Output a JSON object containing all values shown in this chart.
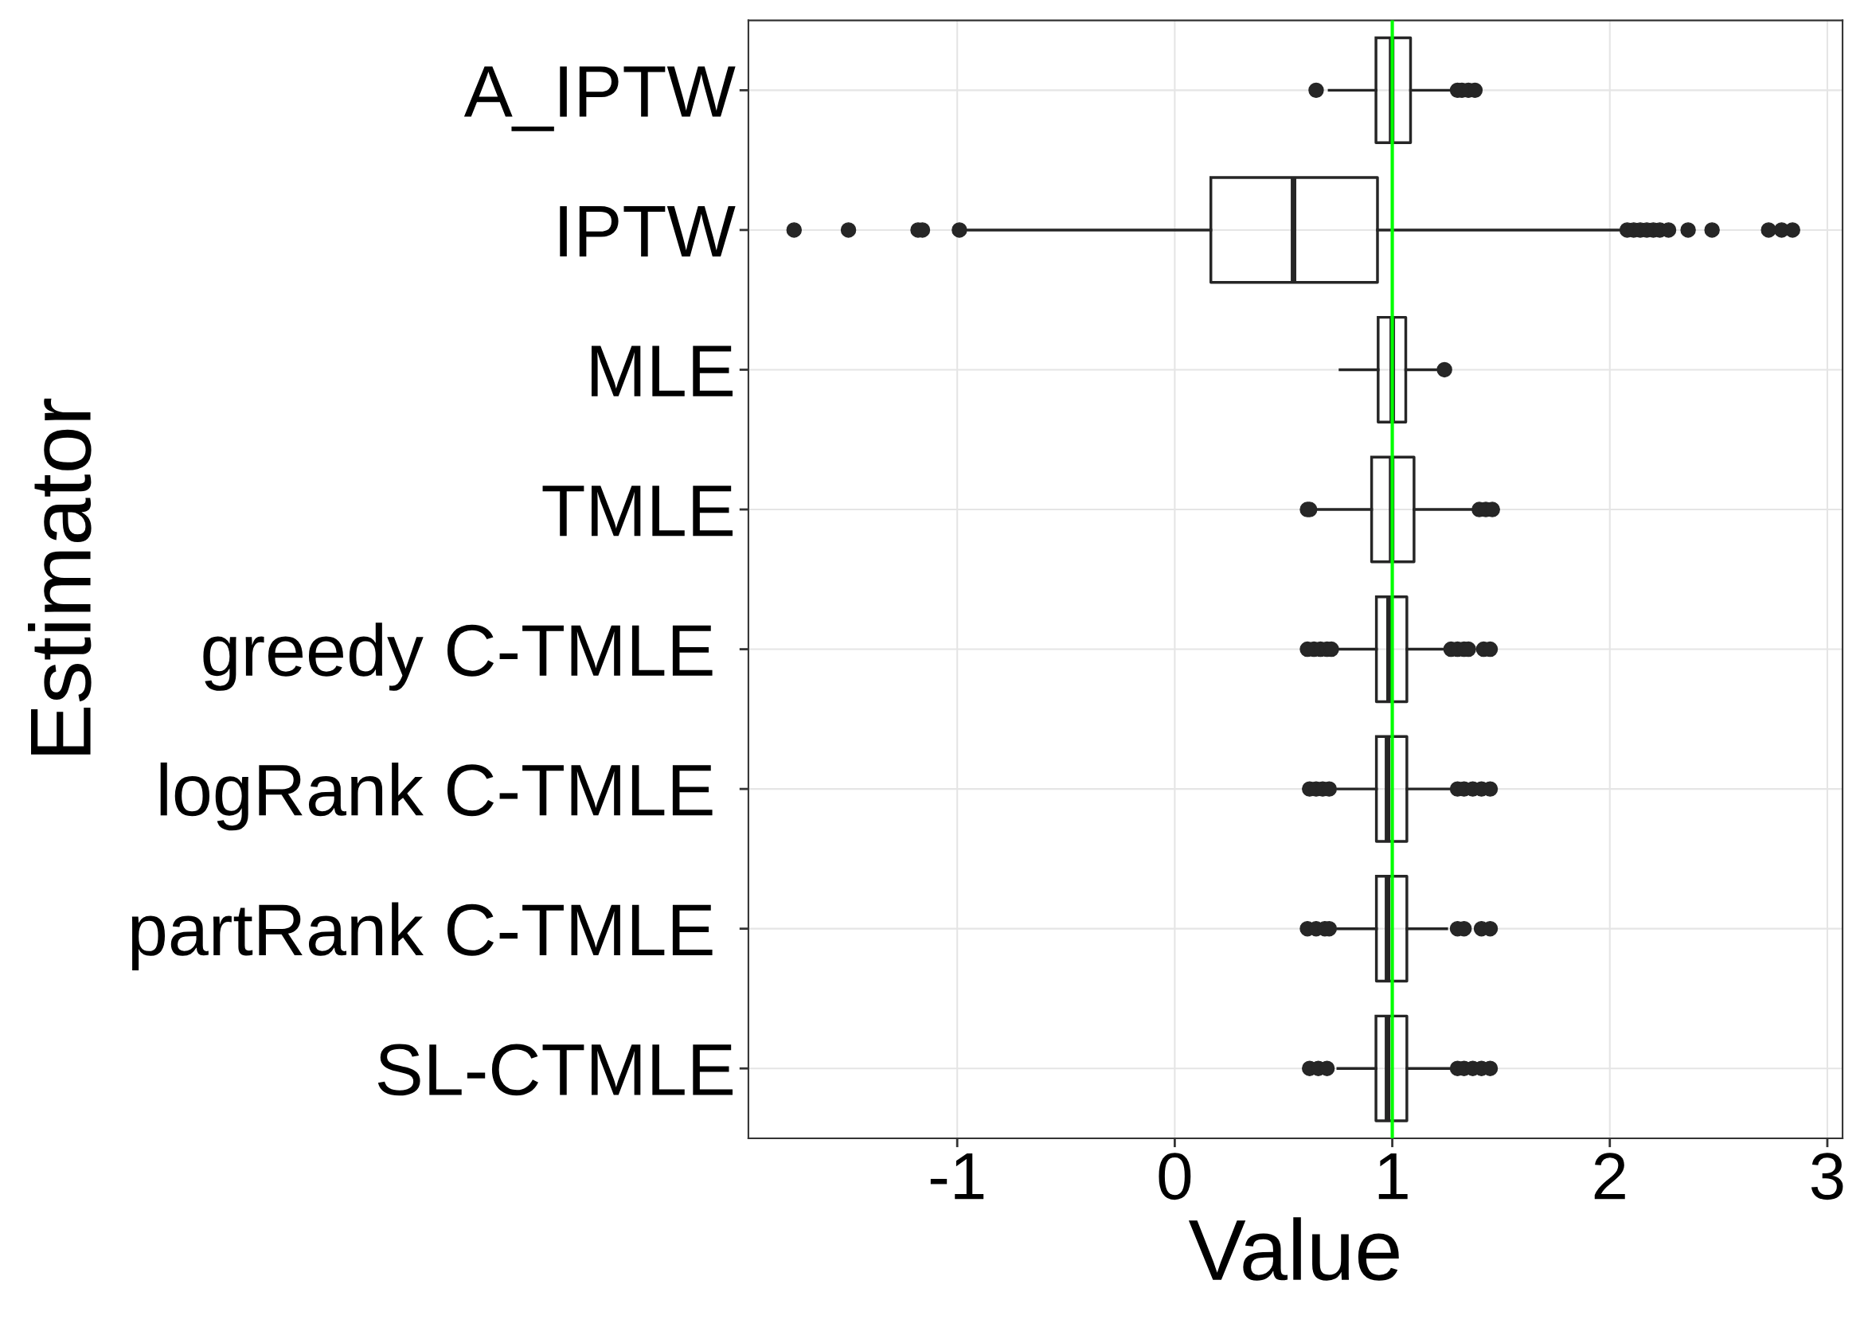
{
  "chart_data": {
    "type": "box",
    "orientation": "horizontal",
    "xlabel": "Value",
    "ylabel": "Estimator",
    "categories": [
      "A_IPTW",
      "IPTW",
      "MLE",
      "TMLE",
      "greedy C-TMLE ",
      "logRank C-TMLE ",
      "partRank C-TMLE ",
      "SL-CTMLE"
    ],
    "boxes": [
      {
        "low": 0.71,
        "q1": 0.925,
        "median": 0.997,
        "q3": 1.084,
        "high": 1.28,
        "outliers": [
          0.65,
          1.3,
          1.32,
          1.35,
          1.38
        ]
      },
      {
        "low": -0.97,
        "q1": 0.166,
        "median": 0.546,
        "q3": 0.932,
        "high": 2.06,
        "outliers": [
          -1.75,
          -1.5,
          -1.18,
          -1.16,
          -0.99,
          2.08,
          2.11,
          2.14,
          2.17,
          2.2,
          2.23,
          2.27,
          2.36,
          2.47,
          2.73,
          2.79,
          2.84
        ]
      },
      {
        "low": 0.76,
        "q1": 0.935,
        "median": 1.0,
        "q3": 1.062,
        "high": 1.21,
        "outliers": [
          1.24
        ]
      },
      {
        "low": 0.63,
        "q1": 0.905,
        "median": 0.997,
        "q3": 1.1,
        "high": 1.37,
        "outliers": [
          0.61,
          0.62,
          1.4,
          1.43,
          1.46
        ]
      },
      {
        "low": 0.75,
        "q1": 0.927,
        "median": 0.985,
        "q3": 1.067,
        "high": 1.24,
        "outliers": [
          0.61,
          0.64,
          0.67,
          0.7,
          0.72,
          1.27,
          1.3,
          1.33,
          1.35,
          1.42,
          1.45
        ]
      },
      {
        "low": 0.75,
        "q1": 0.927,
        "median": 0.978,
        "q3": 1.067,
        "high": 1.26,
        "outliers": [
          0.62,
          0.65,
          0.68,
          0.71,
          1.3,
          1.33,
          1.37,
          1.41,
          1.45
        ]
      },
      {
        "low": 0.75,
        "q1": 0.927,
        "median": 0.978,
        "q3": 1.067,
        "high": 1.25,
        "outliers": [
          0.61,
          0.65,
          0.69,
          0.71,
          1.3,
          1.33,
          1.41,
          1.45
        ]
      },
      {
        "low": 0.75,
        "q1": 0.925,
        "median": 0.978,
        "q3": 1.067,
        "high": 1.26,
        "outliers": [
          0.62,
          0.66,
          0.7,
          1.3,
          1.33,
          1.37,
          1.41,
          1.45
        ]
      }
    ],
    "color": "#262626",
    "xlim": [
      -1.96,
      3.07
    ],
    "xticks": [
      -1,
      0,
      1,
      2,
      3
    ],
    "ref_lines": [
      {
        "axis": "x",
        "value": 1,
        "color": "#00ff00"
      }
    ],
    "grid": true
  }
}
